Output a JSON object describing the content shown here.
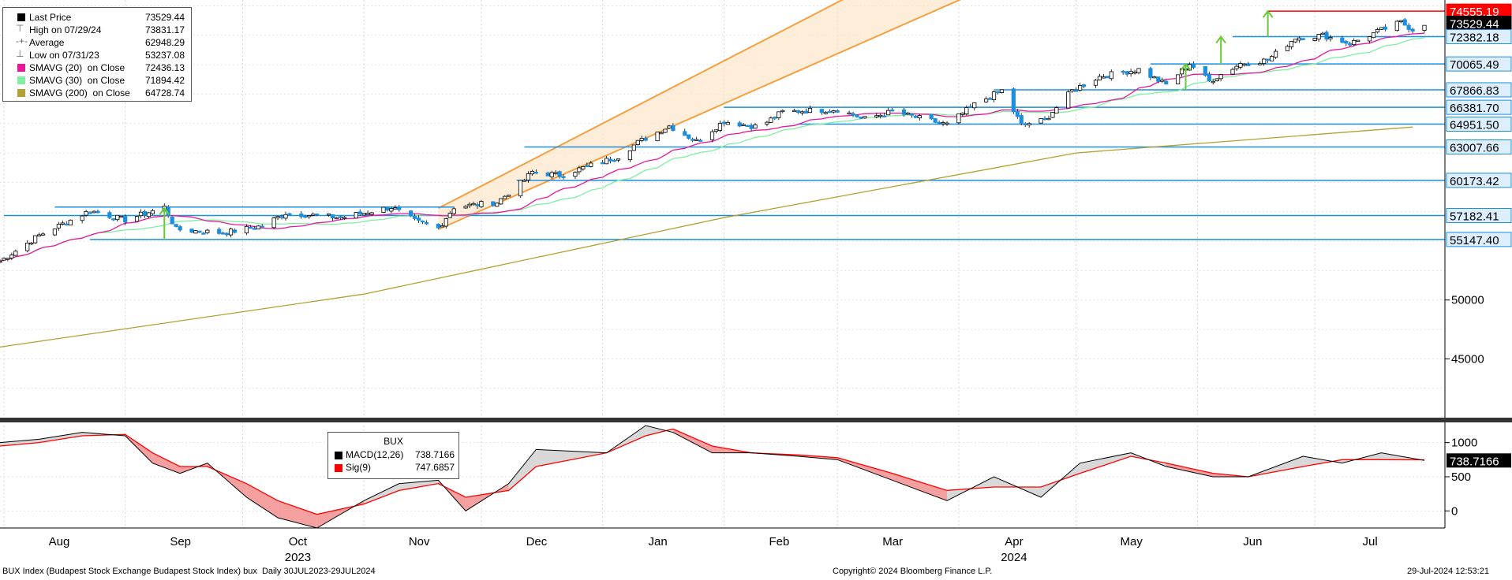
{
  "legend": {
    "items": [
      {
        "name": "Last Price",
        "value": "73529.44",
        "color": "#000000",
        "glyph": "square"
      },
      {
        "name": "High on 07/29/24",
        "value": "73831.17",
        "color": "#666666",
        "glyph": "⊤"
      },
      {
        "name": "Average",
        "value": "62948.29",
        "color": "#666666",
        "glyph": "-+-"
      },
      {
        "name": "Low on 07/31/23",
        "value": "53237.08",
        "color": "#666666",
        "glyph": "⊥"
      },
      {
        "name": "SMAVG (20)  on Close",
        "value": "72436.13",
        "color": "#e8179b",
        "glyph": "square"
      },
      {
        "name": "SMAVG (30)  on Close",
        "value": "71894.42",
        "color": "#7ef0a0",
        "glyph": "square"
      },
      {
        "name": "SMAVG (200)  on Close",
        "value": "64728.74",
        "color": "#b2a030",
        "glyph": "square"
      }
    ]
  },
  "macd_legend": {
    "title": "BUX",
    "items": [
      {
        "name": "MACD(12,26)",
        "value": "738.7166",
        "color": "#000000"
      },
      {
        "name": "Sig(9)",
        "value": "747.6857",
        "color": "#ff0000"
      }
    ]
  },
  "footer": {
    "left": "BUX Index (Budapest Stock Exchange Budapest Stock Index) bux  Daily 30JUL2023-29JUL2024",
    "center": "Copyright© 2024 Bloomberg Finance L.P.",
    "right": "29-Jul-2024 12:53:21"
  },
  "chart_data": [
    {
      "type": "candlestick",
      "title": "",
      "x_range": [
        "2023-07-31",
        "2024-07-29"
      ],
      "ylim": [
        40000,
        75500
      ],
      "y_ticks": [
        45000,
        50000
      ],
      "month_labels": [
        "Aug",
        "Sep",
        "Oct",
        "Nov",
        "Dec",
        "Jan",
        "Feb",
        "Mar",
        "Apr",
        "May",
        "Jun",
        "Jul"
      ],
      "year_labels": [
        "2023",
        "2024"
      ],
      "price_path": [
        {
          "date": "2023-07-31",
          "close": 53300
        },
        {
          "date": "2023-08-10",
          "close": 55500
        },
        {
          "date": "2023-08-23",
          "close": 57600
        },
        {
          "date": "2023-09-01",
          "close": 56800
        },
        {
          "date": "2023-09-11",
          "close": 57900
        },
        {
          "date": "2023-09-14",
          "close": 56000
        },
        {
          "date": "2023-09-26",
          "close": 55700
        },
        {
          "date": "2023-10-06",
          "close": 56300
        },
        {
          "date": "2023-10-12",
          "close": 57400
        },
        {
          "date": "2023-10-26",
          "close": 57000
        },
        {
          "date": "2023-11-08",
          "close": 57900
        },
        {
          "date": "2023-11-14",
          "close": 56700
        },
        {
          "date": "2023-11-20",
          "close": 56100
        },
        {
          "date": "2023-11-24",
          "close": 57900
        },
        {
          "date": "2023-12-05",
          "close": 58300
        },
        {
          "date": "2023-12-12",
          "close": 60200
        },
        {
          "date": "2023-12-14",
          "close": 60900
        },
        {
          "date": "2023-12-21",
          "close": 60600
        },
        {
          "date": "2024-01-05",
          "close": 62200
        },
        {
          "date": "2024-01-10",
          "close": 63400
        },
        {
          "date": "2024-01-18",
          "close": 64800
        },
        {
          "date": "2024-01-25",
          "close": 63500
        },
        {
          "date": "2024-02-01",
          "close": 65200
        },
        {
          "date": "2024-02-10",
          "close": 64700
        },
        {
          "date": "2024-02-16",
          "close": 66000
        },
        {
          "date": "2024-03-01",
          "close": 66200
        },
        {
          "date": "2024-03-08",
          "close": 65400
        },
        {
          "date": "2024-03-15",
          "close": 66000
        },
        {
          "date": "2024-03-29",
          "close": 64900
        },
        {
          "date": "2024-04-05",
          "close": 66600
        },
        {
          "date": "2024-04-12",
          "close": 67800
        },
        {
          "date": "2024-04-17",
          "close": 64900
        },
        {
          "date": "2024-04-23",
          "close": 65300
        },
        {
          "date": "2024-04-30",
          "close": 67800
        },
        {
          "date": "2024-05-07",
          "close": 69000
        },
        {
          "date": "2024-05-17",
          "close": 69600
        },
        {
          "date": "2024-05-24",
          "close": 68300
        },
        {
          "date": "2024-05-30",
          "close": 70100
        },
        {
          "date": "2024-06-04",
          "close": 68600
        },
        {
          "date": "2024-06-12",
          "close": 70100
        },
        {
          "date": "2024-06-19",
          "close": 70400
        },
        {
          "date": "2024-06-26",
          "close": 72300
        },
        {
          "date": "2024-07-03",
          "close": 72500
        },
        {
          "date": "2024-07-10",
          "close": 71800
        },
        {
          "date": "2024-07-17",
          "close": 72800
        },
        {
          "date": "2024-07-23",
          "close": 73600
        },
        {
          "date": "2024-07-26",
          "close": 73000
        },
        {
          "date": "2024-07-29",
          "close": 73529
        }
      ],
      "horizontal_levels": [
        {
          "value": 74555.19,
          "label": "74555.19",
          "color": "#ff0000"
        },
        {
          "value": 73529.44,
          "label": "73529.44",
          "color": "#000000"
        },
        {
          "value": 72382.18,
          "label": "72382.18",
          "color": "#1a8fe0"
        },
        {
          "value": 70065.49,
          "label": "70065.49",
          "color": "#1a8fe0"
        },
        {
          "value": 67866.83,
          "label": "67866.83",
          "color": "#1a8fe0"
        },
        {
          "value": 66381.7,
          "label": "66381.70",
          "color": "#1a8fe0"
        },
        {
          "value": 64951.5,
          "label": "64951.50",
          "color": "#1a8fe0"
        },
        {
          "value": 63007.66,
          "label": "63007.66",
          "color": "#1a8fe0"
        },
        {
          "value": 60173.42,
          "label": "60173.42",
          "color": "#1a8fe0"
        },
        {
          "value": 57182.41,
          "label": "57182.41",
          "color": "#1a8fe0"
        },
        {
          "value": 55147.4,
          "label": "55147.40",
          "color": "#1a8fe0"
        }
      ],
      "channel": {
        "lower": [
          {
            "date": "2023-11-20",
            "value": 56000
          },
          {
            "date": "2024-04-08",
            "value": 76500
          }
        ],
        "upper": [
          {
            "date": "2023-11-20",
            "value": 57800
          },
          {
            "date": "2024-03-08",
            "value": 76500
          }
        ]
      },
      "smavg_200": [
        {
          "date": "2023-07-31",
          "value": 46000
        },
        {
          "date": "2023-11-01",
          "value": 50500
        },
        {
          "date": "2024-02-01",
          "value": 57000
        },
        {
          "date": "2024-05-01",
          "value": 62500
        },
        {
          "date": "2024-07-26",
          "value": 64700
        }
      ]
    },
    {
      "type": "line",
      "title": "BUX",
      "ylim": [
        -250,
        1250
      ],
      "y_ticks": [
        0,
        500,
        1000
      ],
      "series": [
        {
          "name": "MACD(12,26)",
          "color": "#000000",
          "x": [
            "2023-07-31",
            "2023-08-10",
            "2023-08-21",
            "2023-09-01",
            "2023-09-08",
            "2023-09-15",
            "2023-09-22",
            "2023-10-02",
            "2023-10-10",
            "2023-10-20",
            "2023-11-01",
            "2023-11-10",
            "2023-11-20",
            "2023-11-27",
            "2023-12-08",
            "2023-12-15",
            "2024-01-02",
            "2024-01-12",
            "2024-01-19",
            "2024-01-29",
            "2024-02-08",
            "2024-02-20",
            "2024-03-01",
            "2024-03-15",
            "2024-03-29",
            "2024-04-10",
            "2024-04-22",
            "2024-05-02",
            "2024-05-15",
            "2024-05-24",
            "2024-06-05",
            "2024-06-14",
            "2024-06-28",
            "2024-07-08",
            "2024-07-18",
            "2024-07-29"
          ],
          "values": [
            1000,
            1050,
            1150,
            1100,
            700,
            550,
            700,
            200,
            -100,
            -250,
            150,
            400,
            450,
            0,
            400,
            900,
            850,
            1250,
            1150,
            850,
            850,
            800,
            750,
            450,
            150,
            500,
            200,
            700,
            850,
            650,
            500,
            500,
            800,
            700,
            850,
            739
          ]
        },
        {
          "name": "Sig(9)",
          "color": "#ff0000",
          "x": [
            "2023-07-31",
            "2023-08-10",
            "2023-08-21",
            "2023-09-01",
            "2023-09-08",
            "2023-09-15",
            "2023-09-22",
            "2023-10-02",
            "2023-10-10",
            "2023-10-20",
            "2023-11-01",
            "2023-11-10",
            "2023-11-20",
            "2023-11-27",
            "2023-12-08",
            "2023-12-15",
            "2024-01-02",
            "2024-01-12",
            "2024-01-19",
            "2024-01-29",
            "2024-02-08",
            "2024-02-20",
            "2024-03-01",
            "2024-03-15",
            "2024-03-29",
            "2024-04-10",
            "2024-04-22",
            "2024-05-02",
            "2024-05-15",
            "2024-05-24",
            "2024-06-05",
            "2024-06-14",
            "2024-06-28",
            "2024-07-08",
            "2024-07-18",
            "2024-07-29"
          ],
          "values": [
            950,
            1000,
            1100,
            1120,
            850,
            650,
            650,
            400,
            150,
            -50,
            100,
            300,
            400,
            200,
            300,
            650,
            850,
            1100,
            1200,
            950,
            850,
            820,
            780,
            550,
            300,
            350,
            350,
            550,
            800,
            700,
            550,
            500,
            650,
            750,
            750,
            748
          ]
        }
      ]
    }
  ]
}
